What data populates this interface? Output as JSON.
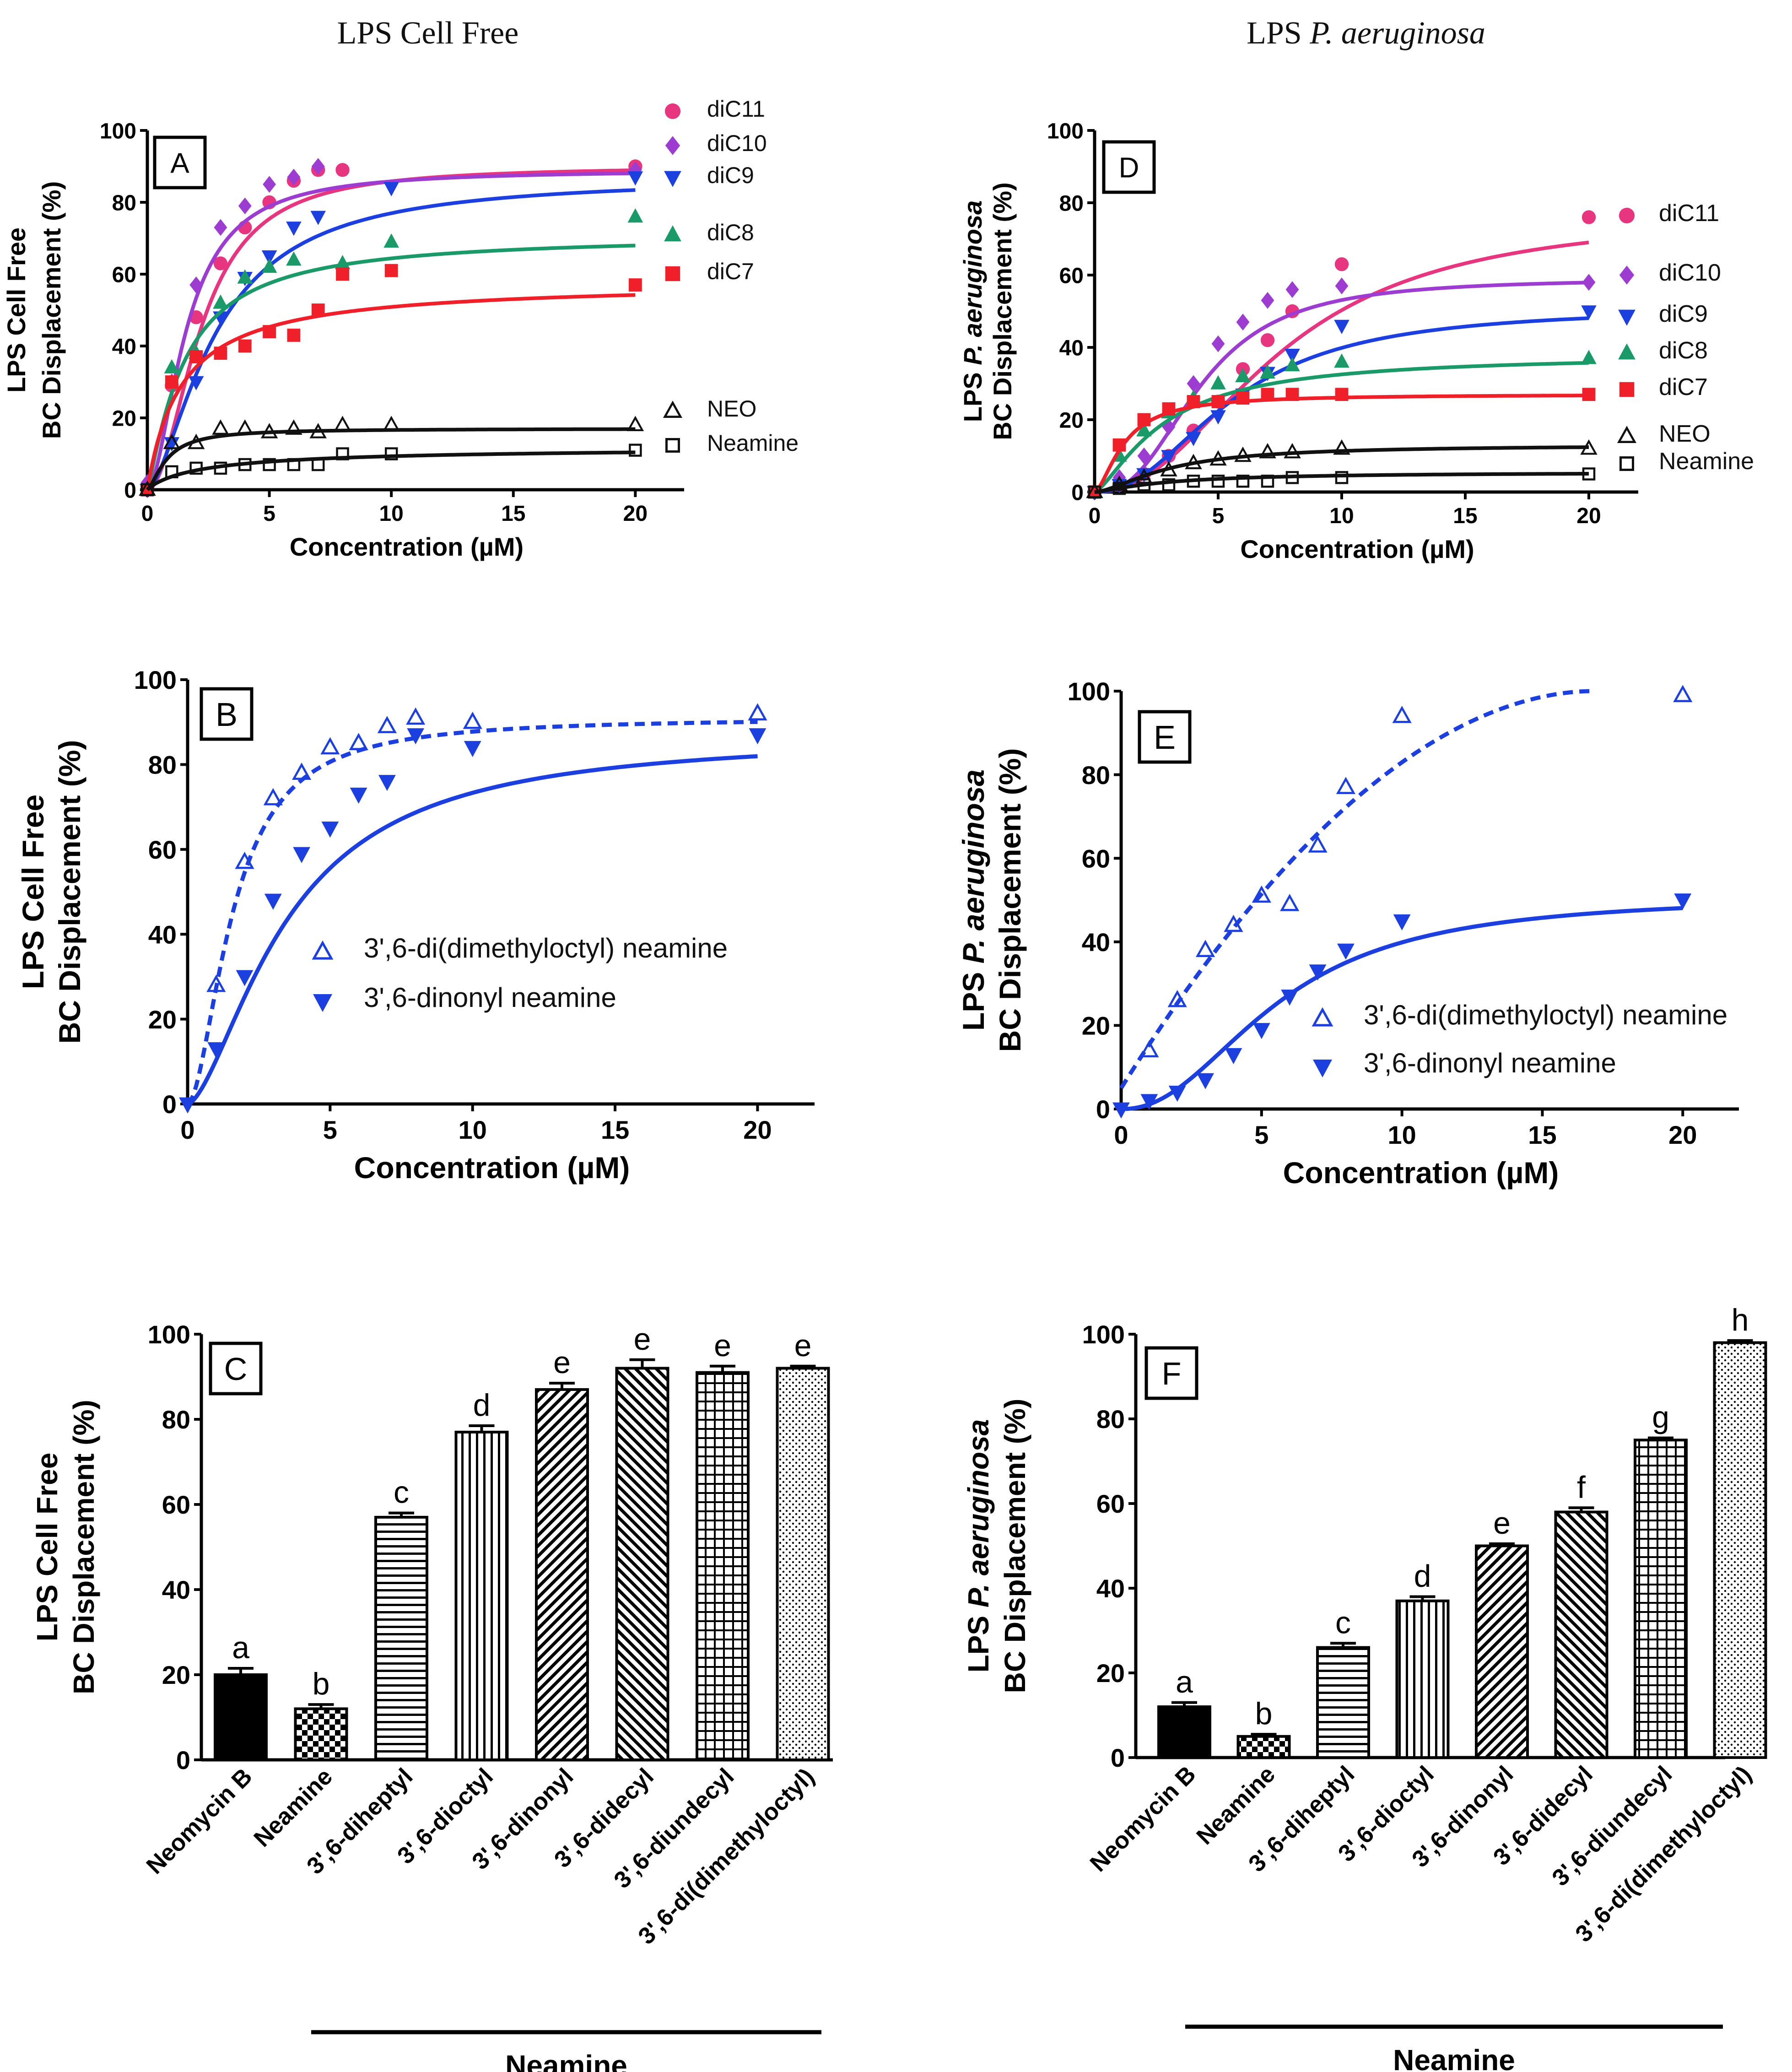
{
  "figure": {
    "col_titles": [
      {
        "prefix": "LPS ",
        "main": "Cell Free",
        "italic": false
      },
      {
        "prefix": "LPS ",
        "main": "P. aeruginosa",
        "italic": true
      }
    ]
  },
  "chart_data": [
    {
      "panel": "A",
      "type": "scatter",
      "xlabel": "Concentration (µM)",
      "ylabel_lines": [
        {
          "pre": "LPS Cell Free",
          "it": "",
          "post": ""
        },
        {
          "pre": "BC Displacement (%)",
          "it": "",
          "post": ""
        }
      ],
      "xlim": [
        0,
        22
      ],
      "ylim": [
        0,
        100
      ],
      "xticks": [
        0,
        5,
        10,
        15,
        20
      ],
      "xtick_labels": [
        "0",
        "5",
        "10",
        "15",
        "20"
      ],
      "yticks": [
        0,
        20,
        40,
        60,
        80,
        100
      ],
      "ytick_labels": [
        "0",
        "20",
        "40",
        "60",
        "80",
        "100"
      ],
      "legend_position": "right",
      "series": [
        {
          "name": "diC11",
          "color": "#e8357f",
          "marker": "circle",
          "curve": "solid",
          "x": [
            0,
            1,
            2,
            3,
            4,
            5,
            6,
            7,
            8,
            20
          ],
          "y": [
            1,
            29,
            48,
            63,
            73,
            80,
            86,
            89,
            89,
            90
          ],
          "fit": {
            "model": "hyp",
            "a": 90,
            "b": 2.2,
            "n": 2.0
          }
        },
        {
          "name": "diC10",
          "color": "#9d3cd0",
          "marker": "diamond",
          "curve": "solid",
          "x": [
            0,
            1,
            2,
            3,
            4,
            5,
            6,
            7,
            20
          ],
          "y": [
            2,
            30,
            57,
            73,
            79,
            85,
            87,
            90,
            89
          ],
          "fit": {
            "model": "hyp",
            "a": 89,
            "b": 1.6,
            "n": 1.8
          }
        },
        {
          "name": "diC9",
          "color": "#1c3fe0",
          "marker": "tri-down",
          "curve": "solid",
          "x": [
            0,
            1,
            2,
            3,
            4,
            5,
            6,
            7,
            10,
            20
          ],
          "y": [
            0,
            13,
            30,
            48,
            59,
            65,
            73,
            76,
            84,
            87
          ],
          "fit": {
            "model": "hyp",
            "a": 87,
            "b": 2.8,
            "n": 1.6
          }
        },
        {
          "name": "diC8",
          "color": "#1a9a68",
          "marker": "tri-up",
          "curve": "solid",
          "x": [
            0,
            1,
            2,
            3,
            4,
            5,
            6,
            8,
            10,
            20
          ],
          "y": [
            0,
            34,
            38,
            52,
            59,
            62,
            64,
            63,
            69,
            76
          ],
          "fit": {
            "model": "hyp",
            "a": 71,
            "b": 1.5,
            "n": 1.2
          }
        },
        {
          "name": "diC7",
          "color": "#f0202a",
          "marker": "square",
          "curve": "solid",
          "x": [
            0,
            1,
            2,
            3,
            4,
            5,
            6,
            7,
            8,
            10,
            20
          ],
          "y": [
            0,
            30,
            37,
            38,
            40,
            44,
            43,
            50,
            60,
            61,
            57
          ],
          "fit": {
            "model": "hyp",
            "a": 58,
            "b": 1.4,
            "n": 1.0
          }
        },
        {
          "name": "NEO",
          "color": "#111111",
          "marker": "tri-up-open",
          "curve": "solid",
          "x": [
            0,
            1,
            2,
            3,
            4,
            5,
            6,
            7,
            8,
            10,
            20
          ],
          "y": [
            0,
            13,
            13,
            17,
            17,
            16,
            17,
            16,
            18,
            18,
            18
          ],
          "fit": {
            "model": "hyp",
            "a": 17,
            "b": 0.8,
            "n": 1.5
          }
        },
        {
          "name": "Neamine",
          "color": "#111111",
          "marker": "square-open",
          "curve": "solid",
          "x": [
            0,
            1,
            2,
            3,
            4,
            5,
            6,
            7,
            8,
            10,
            20
          ],
          "y": [
            0,
            5,
            6,
            6,
            7,
            7,
            7,
            7,
            10,
            10,
            11
          ],
          "fit": {
            "model": "hyp",
            "a": 12,
            "b": 2.5,
            "n": 0.9
          }
        }
      ]
    },
    {
      "panel": "B",
      "type": "scatter",
      "xlabel": "Concentration (µM)",
      "ylabel_lines": [
        {
          "pre": "LPS Cell Free",
          "it": "",
          "post": ""
        },
        {
          "pre": "BC Displacement (%)",
          "it": "",
          "post": ""
        }
      ],
      "xlim": [
        0,
        22
      ],
      "ylim": [
        0,
        100
      ],
      "xticks": [
        0,
        5,
        10,
        15,
        20
      ],
      "xtick_labels": [
        "0",
        "5",
        "10",
        "15",
        "20"
      ],
      "yticks": [
        0,
        20,
        40,
        60,
        80,
        100
      ],
      "ytick_labels": [
        "0",
        "20",
        "40",
        "60",
        "80",
        "100"
      ],
      "legend_position": "center",
      "series": [
        {
          "name": "3',6-di(dimethyloctyl) neamine",
          "color": "#1c3fe0",
          "marker": "tri-up-open",
          "curve": "dashed",
          "x": [
            1,
            2,
            3,
            4,
            5,
            6,
            7,
            8,
            10,
            20
          ],
          "y": [
            28,
            57,
            72,
            78,
            84,
            85,
            89,
            91,
            90,
            92
          ],
          "fit": {
            "model": "hyp",
            "a": 91,
            "b": 1.6,
            "n": 1.8
          }
        },
        {
          "name": "3',6-dinonyl neamine",
          "color": "#1c3fe0",
          "marker": "tri-down",
          "curve": "solid",
          "x": [
            0,
            1,
            2,
            3,
            4,
            5,
            6,
            7,
            8,
            10,
            20
          ],
          "y": [
            0,
            13,
            30,
            48,
            59,
            65,
            73,
            76,
            87,
            84,
            87
          ],
          "fit": {
            "model": "hyp",
            "a": 87,
            "b": 3.5,
            "n": 1.6
          }
        }
      ]
    },
    {
      "panel": "C",
      "type": "bar",
      "xlabel": "Neamine",
      "ylabel_lines": [
        {
          "pre": "LPS Cell Free",
          "it": "",
          "post": ""
        },
        {
          "pre": "BC Displacement (%)",
          "it": "",
          "post": ""
        }
      ],
      "ylim": [
        0,
        100
      ],
      "yticks": [
        0,
        20,
        40,
        60,
        80,
        100
      ],
      "ytick_labels": [
        "0",
        "20",
        "40",
        "60",
        "80",
        "100"
      ],
      "categories": [
        "Neomycin B",
        "Neamine",
        "3',6-diheptyl",
        "3',6-dioctyl",
        "3',6-dinonyl",
        "3',6-didecyl",
        "3',6-diundecyl",
        "3',6-di(dimethyloctyl)"
      ],
      "values": [
        20,
        12,
        57,
        77,
        87,
        92,
        91,
        92
      ],
      "errors": [
        1.5,
        1.0,
        1.0,
        1.5,
        1.5,
        2.0,
        1.5,
        0.5
      ],
      "letters": [
        "a",
        "b",
        "c",
        "d",
        "e",
        "e",
        "e",
        "e"
      ],
      "patterns": [
        "solid",
        "checker",
        "hlines",
        "vlines",
        "diag-right",
        "diag-left",
        "grid",
        "dots"
      ]
    },
    {
      "panel": "D",
      "type": "scatter",
      "xlabel": "Concentration  (µM)",
      "ylabel_lines": [
        {
          "pre": "LPS ",
          "it": "P. aeruginosa",
          "post": ""
        },
        {
          "pre": "BC Displacement (%)",
          "it": "",
          "post": ""
        }
      ],
      "xlim": [
        0,
        22
      ],
      "ylim": [
        0,
        100
      ],
      "xticks": [
        0,
        5,
        10,
        15,
        20
      ],
      "xtick_labels": [
        "0",
        "5",
        "10",
        "15",
        "20"
      ],
      "yticks": [
        0,
        20,
        40,
        60,
        80,
        100
      ],
      "ytick_labels": [
        "0",
        "20",
        "40",
        "60",
        "80",
        "100"
      ],
      "legend_position": "right",
      "series": [
        {
          "name": "diC11",
          "color": "#e8357f",
          "marker": "circle",
          "curve": "solid",
          "x": [
            0,
            1,
            2,
            3,
            4,
            5,
            6,
            7,
            8,
            10,
            20
          ],
          "y": [
            0,
            2,
            5,
            10,
            17,
            25,
            34,
            42,
            50,
            63,
            76
          ],
          "fit": {
            "model": "hyp",
            "a": 77,
            "b": 7.5,
            "n": 2.2
          }
        },
        {
          "name": "diC10",
          "color": "#9d3cd0",
          "marker": "diamond",
          "curve": "solid",
          "x": [
            0,
            1,
            2,
            3,
            4,
            5,
            6,
            7,
            8,
            10,
            20
          ],
          "y": [
            0,
            4,
            10,
            18,
            30,
            41,
            47,
            53,
            56,
            57,
            58
          ],
          "fit": {
            "model": "hyp",
            "a": 59,
            "b": 4.3,
            "n": 2.6
          }
        },
        {
          "name": "diC9",
          "color": "#1c3fe0",
          "marker": "tri-down",
          "curve": "solid",
          "x": [
            0,
            1,
            2,
            3,
            4,
            5,
            6,
            7,
            8,
            10,
            20
          ],
          "y": [
            0,
            2,
            5,
            10,
            15,
            21,
            27,
            33,
            38,
            46,
            50
          ],
          "fit": {
            "model": "hyp",
            "a": 51,
            "b": 5.6,
            "n": 2.2
          }
        },
        {
          "name": "diC8",
          "color": "#1a9a68",
          "marker": "tri-up",
          "curve": "solid",
          "x": [
            0,
            1,
            2,
            3,
            4,
            5,
            6,
            7,
            8,
            10,
            20
          ],
          "y": [
            0,
            10,
            17,
            22,
            26,
            30,
            32,
            33,
            35,
            36,
            37
          ],
          "fit": {
            "model": "hyp",
            "a": 38,
            "b": 2.8,
            "n": 1.4
          }
        },
        {
          "name": "diC7",
          "color": "#f0202a",
          "marker": "square",
          "curve": "solid",
          "x": [
            0,
            1,
            2,
            3,
            4,
            5,
            6,
            7,
            8,
            10,
            20
          ],
          "y": [
            0,
            13,
            20,
            23,
            25,
            25,
            26,
            27,
            27,
            27,
            27
          ],
          "fit": {
            "model": "hyp",
            "a": 27,
            "b": 1.2,
            "n": 1.6
          }
        },
        {
          "name": "NEO",
          "color": "#111111",
          "marker": "tri-up-open",
          "curve": "solid",
          "x": [
            0,
            1,
            2,
            3,
            4,
            5,
            6,
            7,
            8,
            10,
            20
          ],
          "y": [
            0,
            2,
            4,
            6,
            8,
            9,
            10,
            11,
            11,
            12,
            12
          ],
          "fit": {
            "model": "hyp",
            "a": 13,
            "b": 3.0,
            "n": 1.6
          }
        },
        {
          "name": "Neamine",
          "color": "#111111",
          "marker": "square-open",
          "curve": "solid",
          "x": [
            0,
            1,
            2,
            3,
            4,
            5,
            6,
            7,
            8,
            10,
            20
          ],
          "y": [
            0,
            1,
            2,
            2,
            3,
            3,
            3,
            3,
            4,
            4,
            5
          ],
          "fit": {
            "model": "hyp",
            "a": 5.5,
            "b": 3.0,
            "n": 1.3
          }
        }
      ]
    },
    {
      "panel": "E",
      "type": "scatter",
      "xlabel": "Concentration (µM)",
      "ylabel_lines": [
        {
          "pre": "LPS ",
          "it": "P. aeruginosa",
          "post": ""
        },
        {
          "pre": "BC Displacement (%)",
          "it": "",
          "post": ""
        }
      ],
      "xlim": [
        0,
        22
      ],
      "ylim": [
        0,
        100
      ],
      "xticks": [
        0,
        5,
        10,
        15,
        20
      ],
      "xtick_labels": [
        "0",
        "5",
        "10",
        "15",
        "20"
      ],
      "yticks": [
        0,
        20,
        40,
        60,
        80,
        100
      ],
      "ytick_labels": [
        "0",
        "20",
        "40",
        "60",
        "80",
        "100"
      ],
      "legend_position": "bottom-right",
      "series": [
        {
          "name": "3',6-di(dimethyloctyl) neamine",
          "color": "#1c3fe0",
          "marker": "tri-up-open",
          "curve": "dashed",
          "x": [
            1,
            2,
            3,
            4,
            5,
            6,
            7,
            8,
            10,
            20
          ],
          "y": [
            14,
            26,
            38,
            44,
            51,
            49,
            63,
            77,
            94,
            99
          ],
          "fit": {
            "model": "lin",
            "a": 100,
            "b": 16.8
          }
        },
        {
          "name": "3',6-dinonyl neamine",
          "color": "#1c3fe0",
          "marker": "tri-down",
          "curve": "solid",
          "x": [
            0,
            1,
            2,
            3,
            4,
            5,
            6,
            7,
            8,
            10,
            20
          ],
          "y": [
            0,
            2,
            4,
            7,
            13,
            19,
            27,
            33,
            38,
            45,
            50
          ],
          "fit": {
            "model": "hyp",
            "a": 51,
            "b": 5.6,
            "n": 2.2
          }
        }
      ]
    },
    {
      "panel": "F",
      "type": "bar",
      "xlabel": "Neamine",
      "ylabel_lines": [
        {
          "pre": "LPS ",
          "it": "P. aeruginosa",
          "post": ""
        },
        {
          "pre": "BC Displacement (%)",
          "it": "",
          "post": ""
        }
      ],
      "ylim": [
        0,
        100
      ],
      "yticks": [
        0,
        20,
        40,
        60,
        80,
        100
      ],
      "ytick_labels": [
        "0",
        "20",
        "40",
        "60",
        "80",
        "100"
      ],
      "categories": [
        "Neomycin B",
        "Neamine",
        "3',6-diheptyl",
        "3',6-dioctyl",
        "3',6-dinonyl",
        "3',6-didecyl",
        "3',6-diundecyl",
        "3',6-di(dimethyloctyl)"
      ],
      "values": [
        12,
        5,
        26,
        37,
        50,
        58,
        75,
        98
      ],
      "errors": [
        1.0,
        0.5,
        1.0,
        1.0,
        0.5,
        1.0,
        0.5,
        0.5
      ],
      "letters": [
        "a",
        "b",
        "c",
        "d",
        "e",
        "f",
        "g",
        "h"
      ],
      "patterns": [
        "solid",
        "checker",
        "hlines",
        "vlines",
        "diag-right",
        "diag-left",
        "grid",
        "dots"
      ]
    }
  ]
}
